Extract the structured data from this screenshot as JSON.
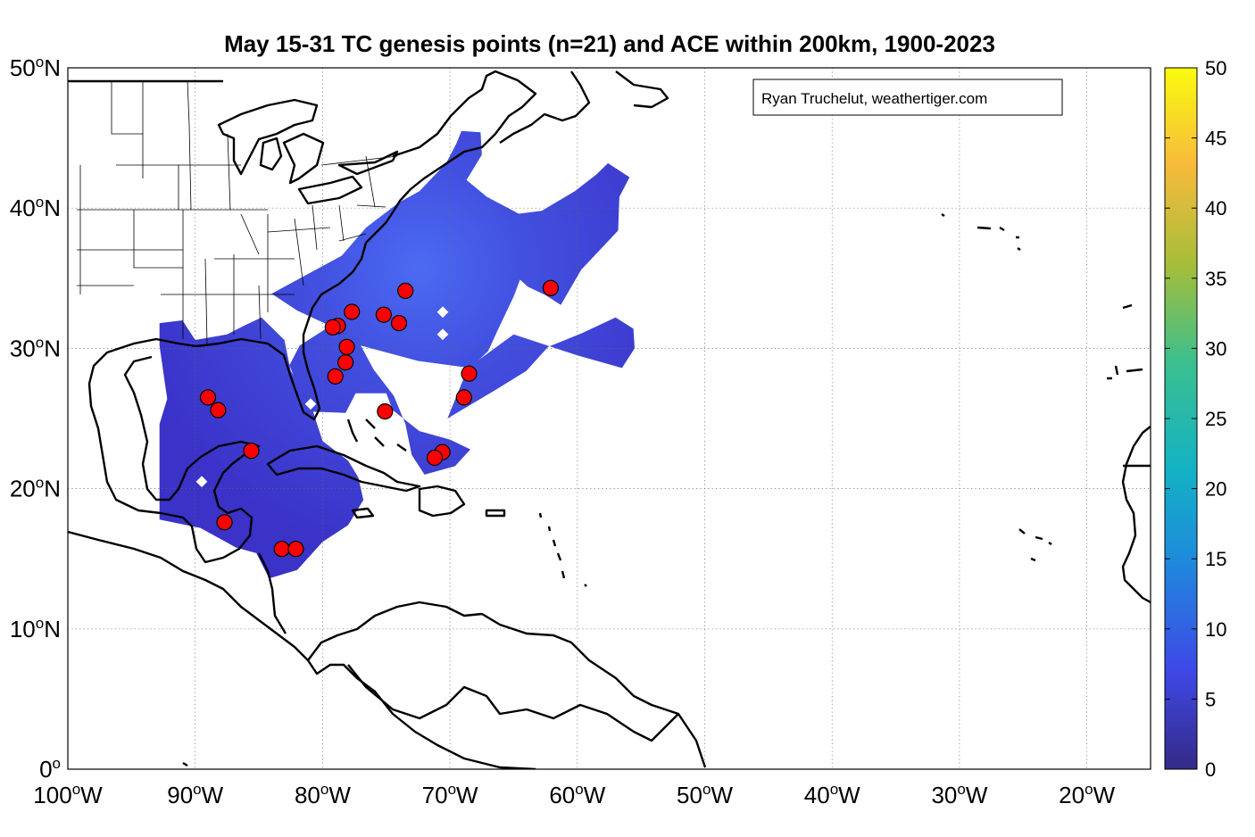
{
  "title": "May 15-31 TC genesis points (n=21) and ACE within 200km, 1900-2023",
  "credit": "Ryan Truchelut, weathertiger.com",
  "colors": {
    "ace_fill_edge": "#3B32C8",
    "ace_fill_core": "#4A63F0",
    "genesis_point": "#FF0000",
    "colormap": [
      "#352A87",
      "#3E48E6",
      "#1E8BDC",
      "#14B2C4",
      "#3BBF8E",
      "#A6BE39",
      "#F7BA3C",
      "#F9FB0E"
    ]
  },
  "map": {
    "lon_range": [
      -100,
      -15
    ],
    "lat_range": [
      0,
      50
    ],
    "grid": "dotted",
    "lon_ticks": [
      {
        "value": -100,
        "num": "100",
        "hemi": "W"
      },
      {
        "value": -90,
        "num": "90",
        "hemi": "W"
      },
      {
        "value": -80,
        "num": "80",
        "hemi": "W"
      },
      {
        "value": -70,
        "num": "70",
        "hemi": "W"
      },
      {
        "value": -60,
        "num": "60",
        "hemi": "W"
      },
      {
        "value": -50,
        "num": "50",
        "hemi": "W"
      },
      {
        "value": -40,
        "num": "40",
        "hemi": "W"
      },
      {
        "value": -30,
        "num": "30",
        "hemi": "W"
      },
      {
        "value": -20,
        "num": "20",
        "hemi": "W"
      }
    ],
    "lat_ticks": [
      {
        "value": 0,
        "num": "0",
        "hemi": ""
      },
      {
        "value": 10,
        "num": "10",
        "hemi": "N"
      },
      {
        "value": 20,
        "num": "20",
        "hemi": "N"
      },
      {
        "value": 30,
        "num": "30",
        "hemi": "N"
      },
      {
        "value": 40,
        "num": "40",
        "hemi": "N"
      },
      {
        "value": 50,
        "num": "50",
        "hemi": "N"
      }
    ],
    "degree_symbol": "o"
  },
  "colorbar": {
    "range": [
      0,
      50
    ],
    "ticks": [
      "0",
      "5",
      "10",
      "15",
      "20",
      "25",
      "30",
      "35",
      "40",
      "45",
      "50"
    ]
  },
  "genesis_points": [
    {
      "lon": -73.5,
      "lat": 34.1
    },
    {
      "lon": -62.1,
      "lat": 34.3
    },
    {
      "lon": -77.7,
      "lat": 32.6
    },
    {
      "lon": -75.2,
      "lat": 32.4
    },
    {
      "lon": -74.0,
      "lat": 31.8
    },
    {
      "lon": -78.8,
      "lat": 31.6
    },
    {
      "lon": -79.2,
      "lat": 31.5
    },
    {
      "lon": -78.1,
      "lat": 30.1
    },
    {
      "lon": -78.2,
      "lat": 29.0
    },
    {
      "lon": -79.0,
      "lat": 28.0
    },
    {
      "lon": -68.5,
      "lat": 28.2
    },
    {
      "lon": -68.9,
      "lat": 26.5
    },
    {
      "lon": -75.1,
      "lat": 25.5
    },
    {
      "lon": -89.0,
      "lat": 26.5
    },
    {
      "lon": -88.2,
      "lat": 25.6
    },
    {
      "lon": -85.6,
      "lat": 22.7
    },
    {
      "lon": -70.6,
      "lat": 22.6
    },
    {
      "lon": -71.2,
      "lat": 22.2
    },
    {
      "lon": -87.7,
      "lat": 17.6
    },
    {
      "lon": -83.2,
      "lat": 15.7
    },
    {
      "lon": -82.1,
      "lat": 15.7
    }
  ],
  "ace_regions": [
    {
      "name": "gulf-caribbean",
      "poly": [
        [
          -92.8,
          30.2
        ],
        [
          -92.8,
          31.8
        ],
        [
          -91,
          32
        ],
        [
          -90,
          30.6
        ],
        [
          -87.5,
          31
        ],
        [
          -86.2,
          31.6
        ],
        [
          -84.8,
          32.2
        ],
        [
          -83,
          30.6
        ],
        [
          -82.5,
          28.4
        ],
        [
          -81,
          26.2
        ],
        [
          -80,
          23.4
        ],
        [
          -78,
          22
        ],
        [
          -77.2,
          20.8
        ],
        [
          -76.8,
          19.2
        ],
        [
          -78,
          17.4
        ],
        [
          -80,
          16.2
        ],
        [
          -82,
          14.2
        ],
        [
          -84.2,
          13.6
        ],
        [
          -85.2,
          15.4
        ],
        [
          -86.8,
          15.8
        ],
        [
          -88.4,
          16.6
        ],
        [
          -89.6,
          17.2
        ],
        [
          -92.8,
          17.8
        ],
        [
          -92.8,
          24.6
        ],
        [
          -92.2,
          26.4
        ]
      ]
    },
    {
      "name": "atlantic-coast",
      "poly": [
        [
          -81.2,
          25.5
        ],
        [
          -82.6,
          28.8
        ],
        [
          -81.8,
          30.2
        ],
        [
          -79.4,
          31.6
        ],
        [
          -82,
          32.7
        ],
        [
          -84,
          33.9
        ],
        [
          -78.5,
          36.6
        ],
        [
          -76.6,
          38.6
        ],
        [
          -74,
          40.4
        ],
        [
          -72.4,
          41.2
        ],
        [
          -70.3,
          43.2
        ],
        [
          -69.5,
          44.6
        ],
        [
          -69.1,
          45.5
        ],
        [
          -67.6,
          45.4
        ],
        [
          -67.5,
          43.8
        ],
        [
          -68.7,
          42
        ],
        [
          -67.1,
          40.8
        ],
        [
          -64.6,
          39.6
        ],
        [
          -62.8,
          39.8
        ],
        [
          -60.2,
          41.2
        ],
        [
          -58.5,
          42.4
        ],
        [
          -57.6,
          43.2
        ],
        [
          -55.9,
          42.2
        ],
        [
          -56.7,
          40.8
        ],
        [
          -56.8,
          38.4
        ],
        [
          -59.7,
          35.6
        ],
        [
          -61.3,
          33.1
        ],
        [
          -62.5,
          33.8
        ],
        [
          -63.9,
          34.4
        ],
        [
          -64.5,
          34.9
        ],
        [
          -65,
          33.7
        ],
        [
          -66.3,
          31.2
        ],
        [
          -67,
          29.8
        ],
        [
          -68.4,
          28.6
        ],
        [
          -72.5,
          29.1
        ],
        [
          -77,
          30.2
        ],
        [
          -76,
          28.5
        ],
        [
          -74.4,
          26.6
        ],
        [
          -73.5,
          24.6
        ],
        [
          -73,
          22.4
        ],
        [
          -72,
          21
        ],
        [
          -69.6,
          21.6
        ],
        [
          -68.4,
          22.8
        ],
        [
          -70,
          23.5
        ],
        [
          -72.4,
          24.1
        ],
        [
          -74.5,
          25.6
        ],
        [
          -75,
          26.8
        ],
        [
          -77.4,
          26.8
        ],
        [
          -78.2,
          25.4
        ]
      ]
    },
    {
      "name": "eastern-arm",
      "poly": [
        [
          -68.6,
          28.6
        ],
        [
          -65,
          31
        ],
        [
          -60,
          29.5
        ],
        [
          -56.5,
          28.6
        ],
        [
          -55.5,
          30
        ],
        [
          -55.6,
          31.4
        ],
        [
          -57,
          32.2
        ],
        [
          -59.6,
          31.1
        ],
        [
          -62.3,
          30.1
        ],
        [
          -64,
          28.4
        ],
        [
          -66.5,
          27
        ],
        [
          -70.2,
          25
        ]
      ]
    }
  ]
}
